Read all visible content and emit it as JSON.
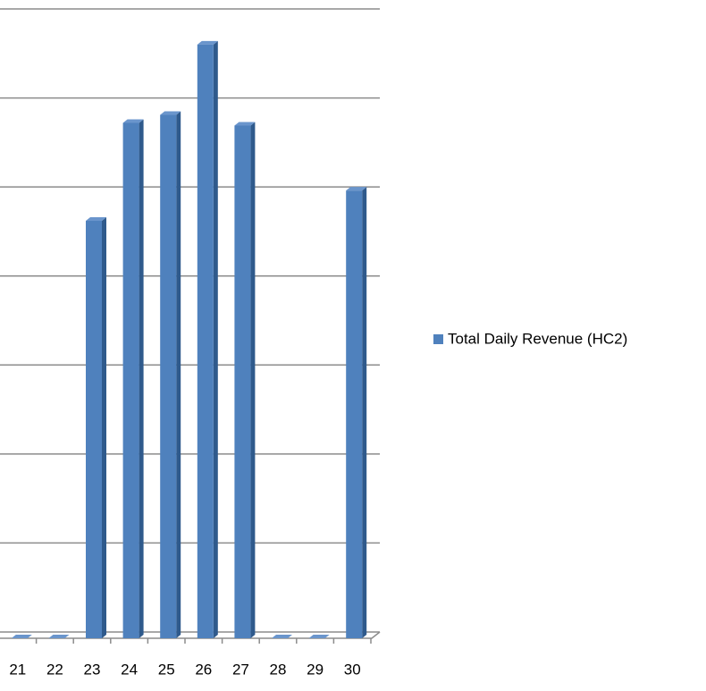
{
  "chart_data": {
    "type": "bar",
    "categories": [
      "21",
      "22",
      "23",
      "24",
      "25",
      "26",
      "27",
      "28",
      "29",
      "30"
    ],
    "series": [
      {
        "name": "Total Daily Revenue (HC2)",
        "color": "#4f81bd",
        "values": [
          0,
          0,
          4.69,
          5.79,
          5.88,
          6.67,
          5.76,
          0,
          0,
          5.03
        ]
      }
    ],
    "ylim": [
      0,
      7
    ],
    "yticks": [
      0,
      1,
      2,
      3,
      4,
      5,
      6,
      7
    ],
    "grid": true
  }
}
